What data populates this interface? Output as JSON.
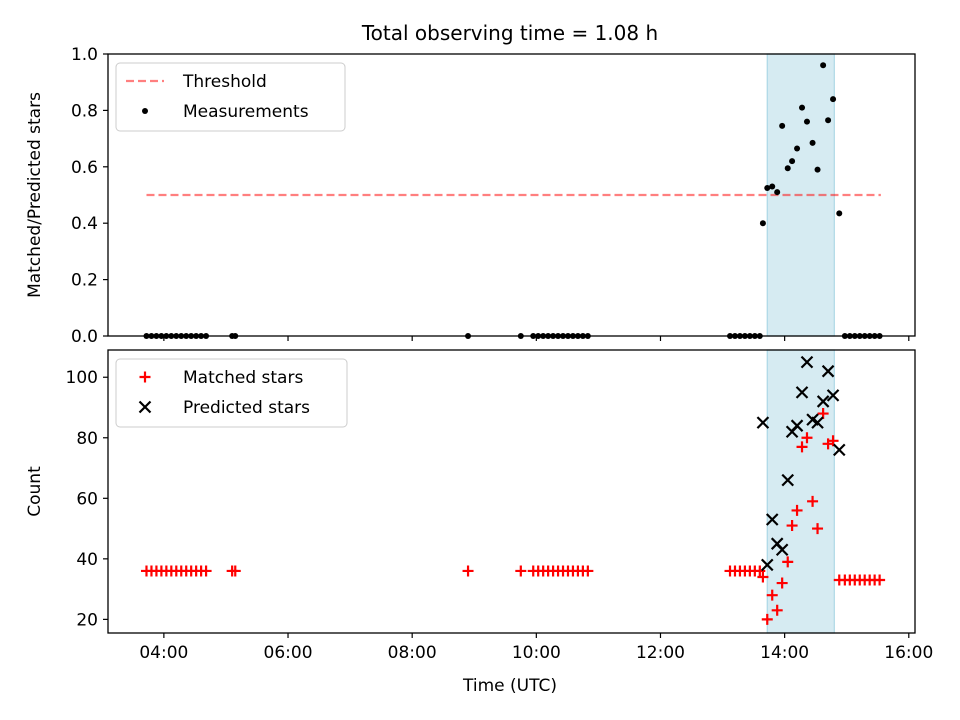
{
  "chart_data": {
    "type": "scatter",
    "title": "Total observing time = 1.08 h",
    "xlabel": "Time (UTC)",
    "x_unit": "hours UTC",
    "xlim": [
      3.1,
      16.1
    ],
    "xticks": [
      4,
      6,
      8,
      10,
      12,
      14,
      16
    ],
    "xtick_labels": [
      "04:00",
      "06:00",
      "08:00",
      "10:00",
      "12:00",
      "14:00",
      "16:00"
    ],
    "observing_window": [
      13.72,
      14.8
    ],
    "window_color": "#add8e6",
    "panels": [
      {
        "ylabel": "Matched/Predicted stars",
        "ylim": [
          0,
          1.0
        ],
        "yticks": [
          0.0,
          0.2,
          0.4,
          0.6,
          0.8,
          1.0
        ],
        "ytick_labels": [
          "0.0",
          "0.2",
          "0.4",
          "0.6",
          "0.8",
          "1.0"
        ],
        "legend_position": "upper-left",
        "threshold": {
          "name": "Threshold",
          "y": 0.5,
          "x_range": [
            3.72,
            15.55
          ],
          "color": "#ff0000",
          "style": "dashed"
        },
        "series": [
          {
            "name": "Measurements",
            "marker": "dot",
            "color": "#000000",
            "x": [
              3.72,
              3.8,
              3.88,
              3.96,
              4.04,
              4.12,
              4.2,
              4.28,
              4.36,
              4.44,
              4.52,
              4.6,
              4.68,
              5.1,
              5.15,
              8.9,
              9.75,
              9.95,
              10.03,
              10.11,
              10.19,
              10.27,
              10.35,
              10.43,
              10.51,
              10.59,
              10.67,
              10.75,
              10.83,
              13.12,
              13.2,
              13.28,
              13.36,
              13.44,
              13.52,
              13.6,
              13.65,
              13.72,
              13.8,
              13.88,
              13.96,
              14.05,
              14.12,
              14.2,
              14.28,
              14.36,
              14.45,
              14.53,
              14.62,
              14.7,
              14.78,
              14.88,
              14.97,
              15.05,
              15.13,
              15.21,
              15.29,
              15.37,
              15.45,
              15.53
            ],
            "y": [
              0,
              0,
              0,
              0,
              0,
              0,
              0,
              0,
              0,
              0,
              0,
              0,
              0,
              0,
              0,
              0,
              0,
              0,
              0,
              0,
              0,
              0,
              0,
              0,
              0,
              0,
              0,
              0,
              0,
              0,
              0,
              0,
              0,
              0,
              0,
              0,
              0.4,
              0.525,
              0.53,
              0.51,
              0.745,
              0.595,
              0.62,
              0.665,
              0.81,
              0.76,
              0.685,
              0.59,
              0.96,
              0.765,
              0.84,
              0.435,
              0,
              0,
              0,
              0,
              0,
              0,
              0,
              0
            ]
          }
        ]
      },
      {
        "ylabel": "Count",
        "ylim": [
          15.5,
          109
        ],
        "yticks": [
          20,
          40,
          60,
          80,
          100
        ],
        "ytick_labels": [
          "20",
          "40",
          "60",
          "80",
          "100"
        ],
        "legend_position": "upper-left",
        "series": [
          {
            "name": "Matched stars",
            "marker": "plus",
            "color": "#ff0000",
            "x": [
              3.72,
              3.8,
              3.88,
              3.96,
              4.04,
              4.12,
              4.2,
              4.28,
              4.36,
              4.44,
              4.52,
              4.6,
              4.68,
              5.1,
              5.15,
              8.9,
              9.75,
              9.95,
              10.03,
              10.11,
              10.19,
              10.27,
              10.35,
              10.43,
              10.51,
              10.59,
              10.67,
              10.75,
              10.83,
              13.12,
              13.2,
              13.28,
              13.36,
              13.44,
              13.52,
              13.6,
              13.65,
              13.72,
              13.8,
              13.88,
              13.96,
              14.05,
              14.12,
              14.2,
              14.28,
              14.36,
              14.45,
              14.53,
              14.62,
              14.7,
              14.78,
              14.88,
              14.97,
              15.05,
              15.13,
              15.21,
              15.29,
              15.37,
              15.45,
              15.53
            ],
            "y": [
              36,
              36,
              36,
              36,
              36,
              36,
              36,
              36,
              36,
              36,
              36,
              36,
              36,
              36,
              36,
              36,
              36,
              36,
              36,
              36,
              36,
              36,
              36,
              36,
              36,
              36,
              36,
              36,
              36,
              36,
              36,
              36,
              36,
              36,
              36,
              36,
              34,
              20,
              28,
              23,
              32,
              39,
              51,
              56,
              77,
              80,
              59,
              50,
              88,
              78,
              79,
              33,
              33,
              33,
              33,
              33,
              33,
              33,
              33,
              33
            ]
          },
          {
            "name": "Predicted stars",
            "marker": "x",
            "color": "#000000",
            "x": [
              13.65,
              13.72,
              13.8,
              13.88,
              13.96,
              14.05,
              14.12,
              14.2,
              14.28,
              14.36,
              14.45,
              14.53,
              14.62,
              14.7,
              14.78,
              14.88
            ],
            "y": [
              85,
              38,
              53,
              45,
              43,
              66,
              82,
              84,
              95,
              105,
              86,
              85,
              92,
              102,
              94,
              76
            ]
          }
        ]
      }
    ]
  }
}
